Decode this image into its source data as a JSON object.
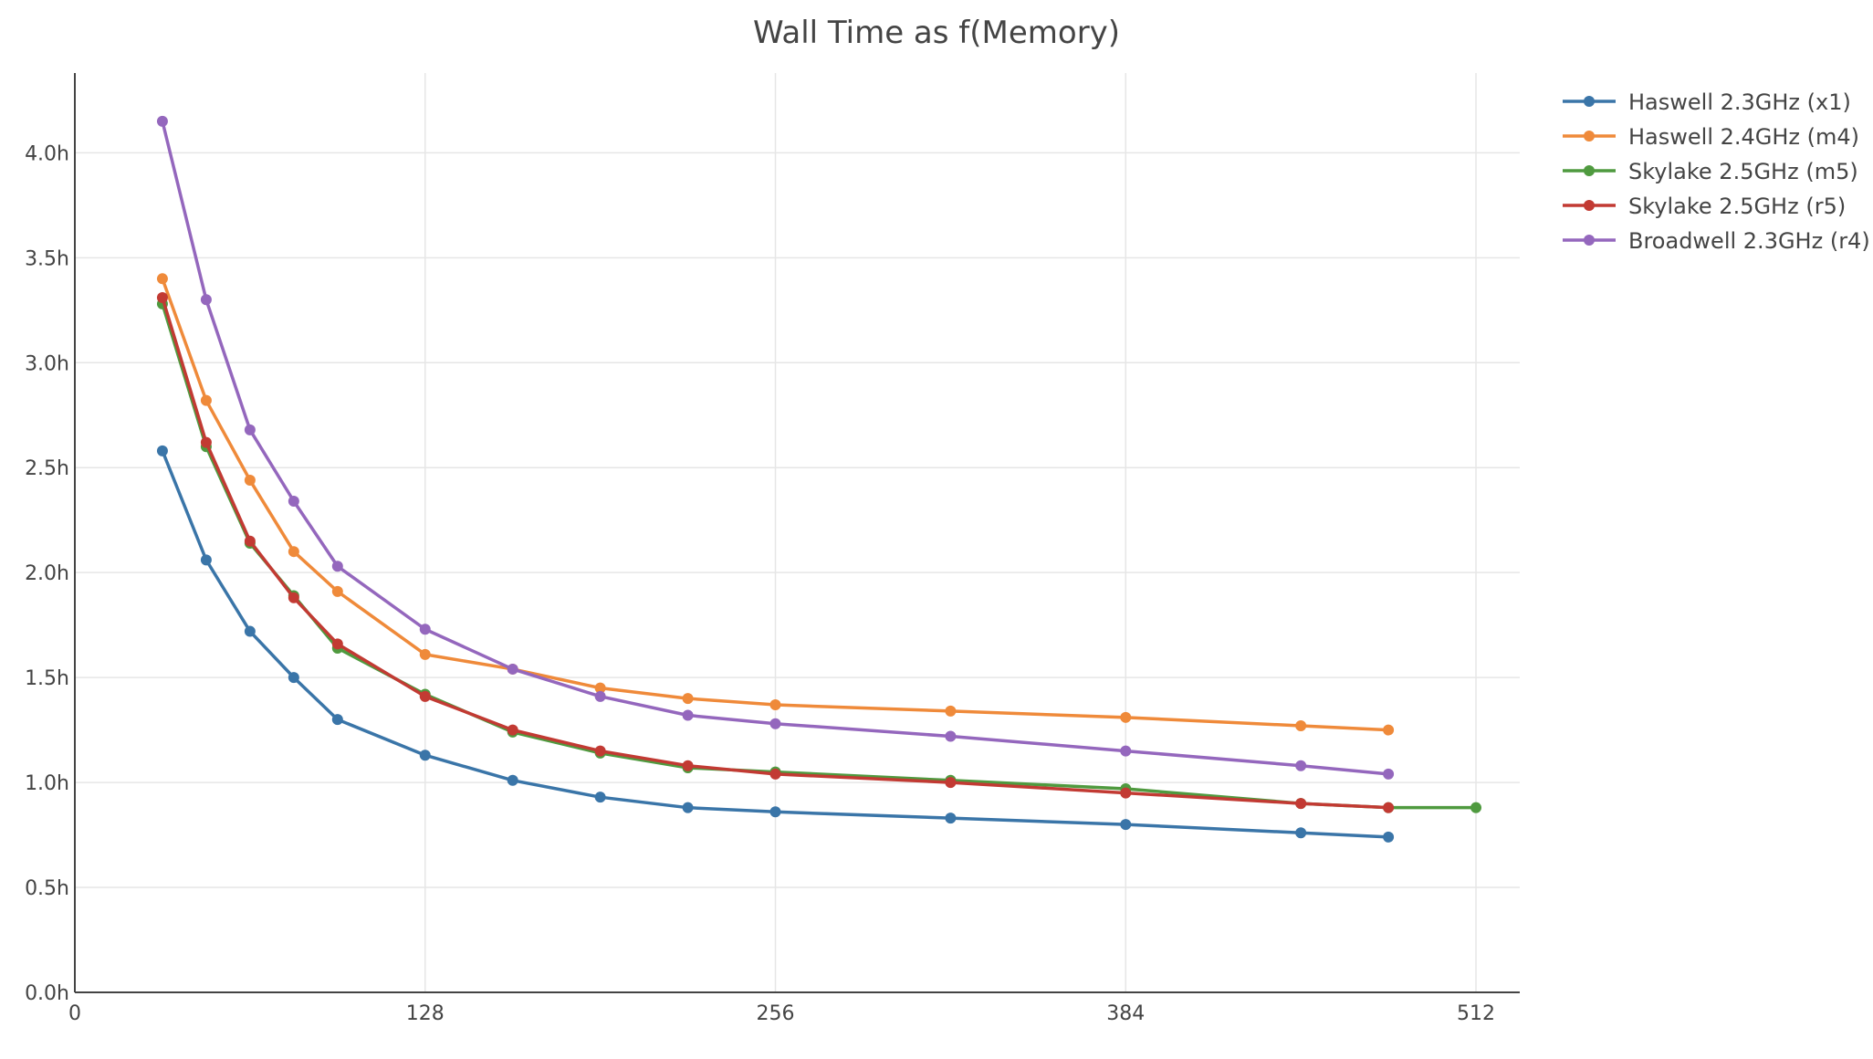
{
  "chart_data": {
    "type": "line",
    "title": "Wall Time as f(Memory)",
    "xlabel": "",
    "ylabel": "",
    "xlim": [
      0,
      528
    ],
    "ylim": [
      0,
      4.38
    ],
    "x_ticks": [
      0,
      128,
      256,
      384,
      512
    ],
    "y_ticks": [
      0,
      0.5,
      1.0,
      1.5,
      2.0,
      2.5,
      3.0,
      3.5,
      4.0
    ],
    "y_tick_labels": [
      "0.0h",
      "0.5h",
      "1.0h",
      "1.5h",
      "2.0h",
      "2.5h",
      "3.0h",
      "3.5h",
      "4.0h"
    ],
    "grid": true,
    "legend_position": "top-right",
    "series": [
      {
        "name": "Haswell 2.3GHz (x1)",
        "color": "#3a75a8",
        "x": [
          32,
          48,
          64,
          80,
          96,
          128,
          160,
          192,
          224,
          256,
          320,
          384,
          448,
          480
        ],
        "y": [
          2.58,
          2.06,
          1.72,
          1.5,
          1.3,
          1.13,
          1.01,
          0.93,
          0.88,
          0.86,
          0.83,
          0.8,
          0.76,
          0.74
        ]
      },
      {
        "name": "Haswell 2.4GHz (m4)",
        "color": "#ef8a3a",
        "x": [
          32,
          48,
          64,
          80,
          96,
          128,
          160,
          192,
          224,
          256,
          320,
          384,
          448,
          480
        ],
        "y": [
          3.4,
          2.82,
          2.44,
          2.1,
          1.91,
          1.61,
          1.54,
          1.45,
          1.4,
          1.37,
          1.34,
          1.31,
          1.27,
          1.25
        ]
      },
      {
        "name": "Skylake 2.5GHz (m5)",
        "color": "#4f9a3f",
        "x": [
          32,
          48,
          64,
          80,
          96,
          128,
          160,
          192,
          224,
          256,
          320,
          384,
          448,
          480,
          512
        ],
        "y": [
          3.28,
          2.6,
          2.14,
          1.89,
          1.64,
          1.42,
          1.24,
          1.14,
          1.07,
          1.05,
          1.01,
          0.97,
          0.9,
          0.88,
          0.88
        ]
      },
      {
        "name": "Skylake 2.5GHz (r5)",
        "color": "#c23a33",
        "x": [
          32,
          48,
          64,
          80,
          96,
          128,
          160,
          192,
          224,
          256,
          320,
          384,
          448,
          480
        ],
        "y": [
          3.31,
          2.62,
          2.15,
          1.88,
          1.66,
          1.41,
          1.25,
          1.15,
          1.08,
          1.04,
          1.0,
          0.95,
          0.9,
          0.88
        ]
      },
      {
        "name": "Broadwell 2.3GHz (r4)",
        "color": "#9467bd",
        "x": [
          32,
          48,
          64,
          80,
          96,
          128,
          160,
          192,
          224,
          256,
          320,
          384,
          448,
          480
        ],
        "y": [
          4.15,
          3.3,
          2.68,
          2.34,
          2.03,
          1.73,
          1.54,
          1.41,
          1.32,
          1.28,
          1.22,
          1.15,
          1.08,
          1.04
        ]
      }
    ]
  }
}
